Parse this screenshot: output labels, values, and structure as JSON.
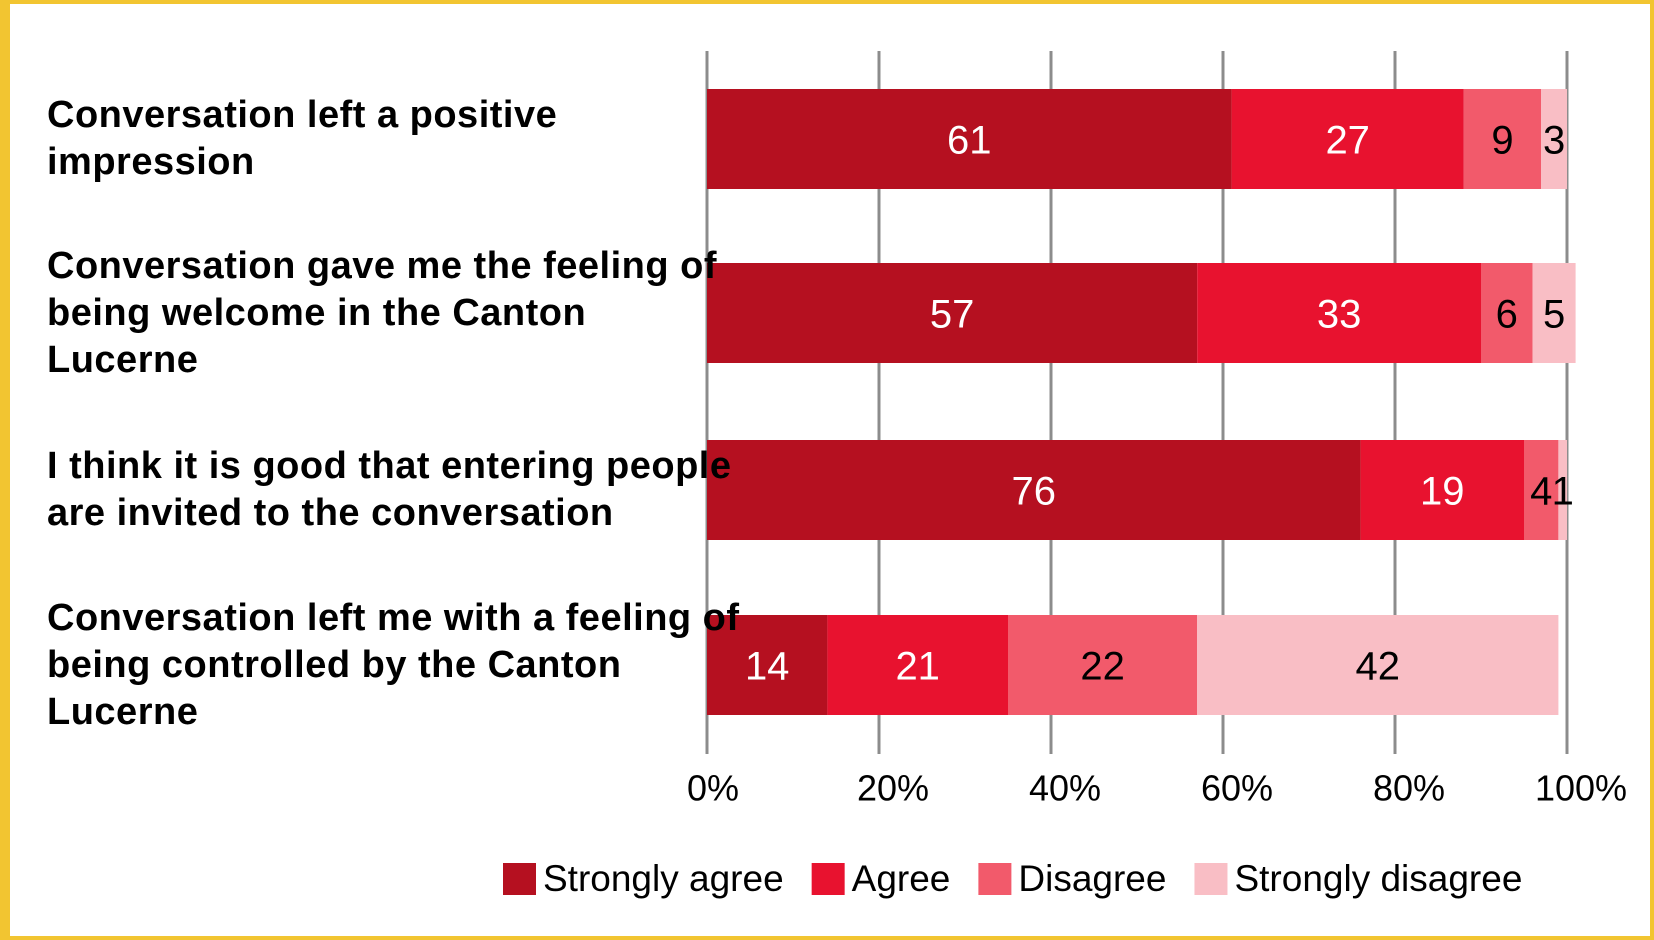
{
  "chart_data": {
    "type": "stacked-barh",
    "categories": [
      "Conversation left a positive impression",
      "Conversation gave me the feeling of being welcome in the Canton Lucerne",
      "I think it is good that entering people are invited to the conversation",
      "Conversation left me with a feeling of being controlled by the Canton Lucerne"
    ],
    "series": [
      {
        "name": "Strongly agree",
        "color": "#b51020",
        "values": [
          61,
          57,
          76,
          14
        ]
      },
      {
        "name": "Agree",
        "color": "#e8122f",
        "values": [
          27,
          33,
          19,
          21
        ]
      },
      {
        "name": "Disagree",
        "color": "#f25a6b",
        "values": [
          9,
          6,
          4,
          22
        ]
      },
      {
        "name": "Strongly disagree",
        "color": "#f9bec5",
        "values": [
          3,
          5,
          1,
          42
        ]
      }
    ],
    "xlim": [
      0,
      100
    ],
    "xticks": [
      {
        "value": 0,
        "label": "0%"
      },
      {
        "value": 20,
        "label": "20%"
      },
      {
        "value": 40,
        "label": "40%"
      },
      {
        "value": 60,
        "label": "60%"
      },
      {
        "value": 80,
        "label": "80%"
      },
      {
        "value": 100,
        "label": "100%"
      }
    ],
    "grid": true,
    "legend": "bottom"
  }
}
